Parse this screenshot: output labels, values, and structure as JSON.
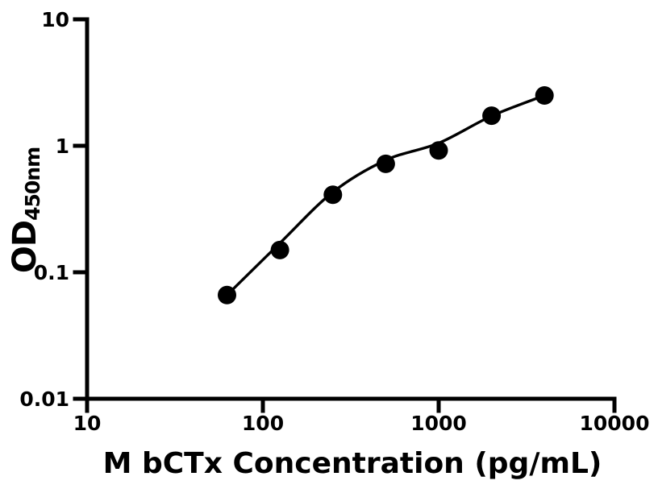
{
  "figure": {
    "background_color": "#ffffff",
    "title": ""
  },
  "chart_data": {
    "type": "scatter",
    "subtype": "elisa-standard-curve",
    "title": "",
    "xlabel": "M bCTx Concentration (pg/mL)",
    "ylabel_main": "OD",
    "ylabel_sub": "450nm",
    "grid": false,
    "legend": null,
    "colors": {
      "axis": "#000000",
      "marker": "#000000",
      "line": "#000000",
      "background": "#ffffff"
    },
    "x_axis": {
      "label": "M bCTx Concentration (pg/mL)",
      "scale": "log",
      "range": [
        10,
        10000
      ],
      "tick_values": [
        10,
        100,
        1000,
        10000
      ],
      "tick_labels": [
        "10",
        "100",
        "1000",
        "10000"
      ]
    },
    "y_axis": {
      "label_main": "OD",
      "label_sub": "450nm",
      "scale": "log",
      "range": [
        0.01,
        10
      ],
      "tick_values": [
        10,
        1,
        0.1,
        0.01
      ],
      "tick_labels": [
        "10",
        "1",
        "0.1",
        "0.01"
      ]
    },
    "series": [
      {
        "name": "fitted curve",
        "kind": "line",
        "color": "#000000",
        "x": [
          62.5,
          125,
          250,
          500,
          1000,
          2000,
          4000
        ],
        "y": [
          0.066,
          0.17,
          0.43,
          0.77,
          1.05,
          1.72,
          2.5
        ]
      },
      {
        "name": "standard data points",
        "kind": "scatter",
        "marker": "filled-circle",
        "color": "#000000",
        "x": [
          62.5,
          125,
          250,
          500,
          1000,
          2000,
          4000
        ],
        "y": [
          0.066,
          0.15,
          0.41,
          0.72,
          0.92,
          1.73,
          2.5
        ]
      }
    ]
  }
}
